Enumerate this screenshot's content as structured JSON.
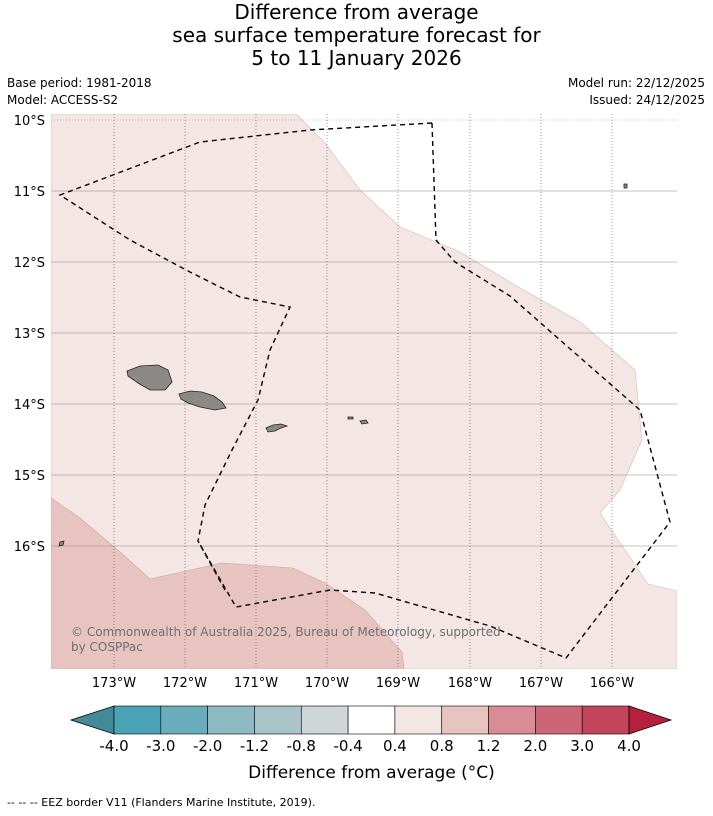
{
  "title": {
    "line1": "Difference from average",
    "line2": "sea surface temperature forecast for",
    "line3": "5 to 11 January 2026"
  },
  "meta": {
    "base_period": "Base period: 1981-2018",
    "model": "Model: ACCESS-S2",
    "model_run": "Model run: 22/12/2025",
    "issued": "Issued: 24/12/2025"
  },
  "map": {
    "lat_labels": [
      "10°S",
      "11°S",
      "12°S",
      "13°S",
      "14°S",
      "15°S",
      "16°S"
    ],
    "lon_labels": [
      "173°W",
      "172°W",
      "171°W",
      "170°W",
      "169°W",
      "168°W",
      "167°W",
      "166°W"
    ],
    "credit": "© Commonwealth of Australia 2025, Bureau of Meteorology, supported by COSPPac",
    "colors": {
      "band_0_4_to_0_8": "#f4e6e4",
      "band_0_8_to_1_2": "#e8c4c0",
      "land": "#8c8886",
      "eez": "#000000"
    }
  },
  "colorbar": {
    "title": "Difference from average (°C)",
    "labels": [
      "-4.0",
      "-3.0",
      "-2.0",
      "-1.2",
      "-0.8",
      "-0.4",
      "0.4",
      "0.8",
      "1.2",
      "2.0",
      "3.0",
      "4.0"
    ],
    "colors": [
      "#438c97",
      "#4aa4b5",
      "#6aaebd",
      "#8ebac3",
      "#a9c5c9",
      "#d0d6d7",
      "#ffffff",
      "#f4e6e4",
      "#e8c4c0",
      "#d98c95",
      "#cc6676",
      "#c34559",
      "#b5203f"
    ]
  },
  "footnote": "-- -- -- EEZ border V11 (Flanders Marine Institute, 2019)."
}
